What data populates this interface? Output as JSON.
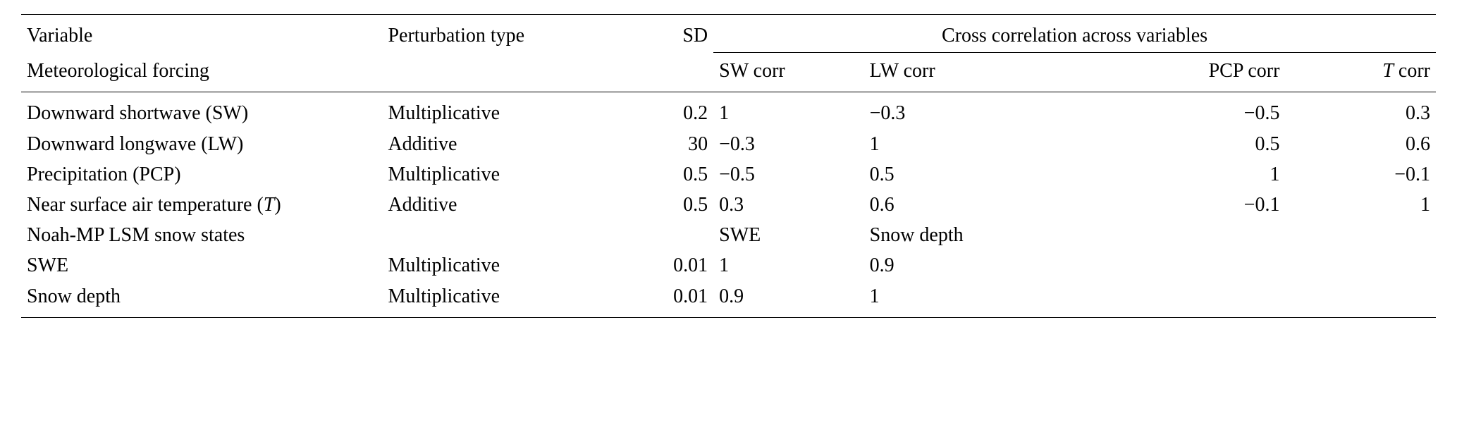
{
  "table": {
    "header": {
      "variable": "Variable",
      "perturbation": "Perturbation type",
      "sd": "SD",
      "cross_span": "Cross correlation across variables",
      "met_forcing": "Meteorological forcing",
      "sw_corr": "SW corr",
      "lw_corr": "LW corr",
      "pcp_corr": "PCP corr",
      "t_corr_prefix": "T",
      "t_corr_suffix": " corr"
    },
    "rows": [
      {
        "variable": "Downward shortwave (SW)",
        "pt": "Multiplicative",
        "sd": "0.2",
        "c1": "1",
        "c2": "−0.3",
        "c3": "−0.5",
        "c4": "0.3"
      },
      {
        "variable": "Downward longwave (LW)",
        "pt": "Additive",
        "sd": "30",
        "c1": "−0.3",
        "c2": "1",
        "c3": "0.5",
        "c4": "0.6"
      },
      {
        "variable": "Precipitation (PCP)",
        "pt": "Multiplicative",
        "sd": "0.5",
        "c1": "−0.5",
        "c2": "0.5",
        "c3": "1",
        "c4": "−0.1"
      }
    ],
    "temp_row": {
      "variable_prefix": "Near surface air temperature (",
      "variable_italic": "T",
      "variable_suffix": ")",
      "pt": "Additive",
      "sd": "0.5",
      "c1": "0.3",
      "c2": "0.6",
      "c3": "−0.1",
      "c4": "1"
    },
    "snow_header": {
      "variable": "Noah-MP LSM snow states",
      "c1": "SWE",
      "c2": "Snow depth"
    },
    "snow_rows": [
      {
        "variable": "SWE",
        "pt": "Multiplicative",
        "sd": "0.01",
        "c1": "1",
        "c2": "0.9"
      },
      {
        "variable": "Snow depth",
        "pt": "Multiplicative",
        "sd": "0.01",
        "c1": "0.9",
        "c2": "1"
      }
    ]
  }
}
